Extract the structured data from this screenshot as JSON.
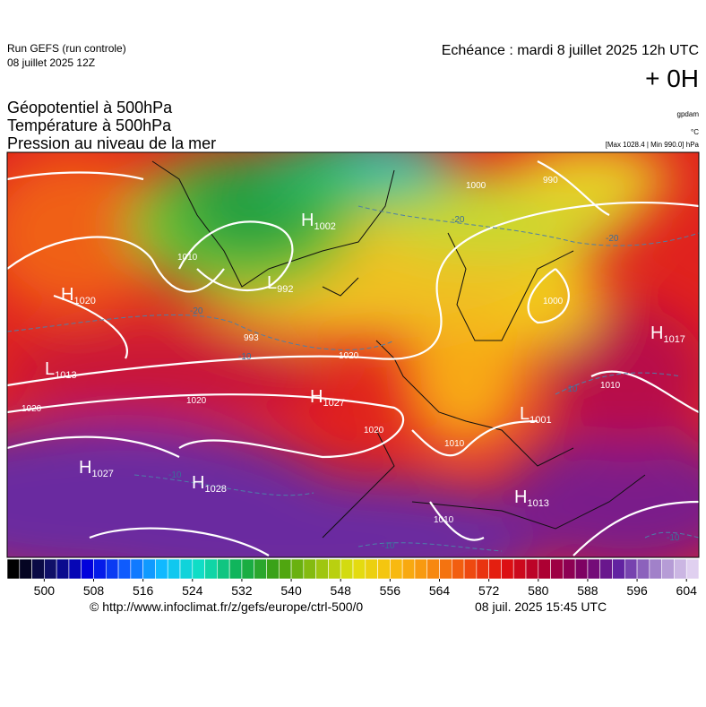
{
  "header": {
    "run": "Run GEFS (run controle)",
    "run_date": "08 juillet 2025 12Z",
    "valid": "Echéance : mardi 8 juillet 2025 12h UTC",
    "lead": "+ 0H",
    "fields": [
      "Géopotentiel à 500hPa",
      "Température à 500hPa",
      "Pression au niveau de la mer"
    ],
    "unit_geopotential": "gpdam",
    "unit_temperature": "°C",
    "pressure_range": "[Max 1028.4 | Min 990.0] hPa"
  },
  "map": {
    "centers": [
      {
        "letter": "H",
        "value": 1020
      },
      {
        "letter": "L",
        "value": 1013
      },
      {
        "letter": "H",
        "value": 1027
      },
      {
        "letter": "H",
        "value": 1027
      },
      {
        "letter": "H",
        "value": 1028
      },
      {
        "letter": "H",
        "value": 1002
      },
      {
        "letter": "L",
        "value": 992
      },
      {
        "letter": "H",
        "value": 1017
      },
      {
        "letter": "L",
        "value": 1001
      },
      {
        "letter": "H",
        "value": 1013
      }
    ],
    "isobar_labels": [
      1000,
      990,
      1020,
      1020,
      1020,
      1020,
      1010,
      1010,
      1010,
      1010,
      1000,
      993
    ],
    "temperature_labels": [
      -20,
      -10,
      -10,
      -10,
      -20,
      -10,
      -10,
      -20
    ]
  },
  "colorbar": {
    "lim": [
      494,
      606
    ],
    "ticks": [
      500,
      508,
      516,
      524,
      532,
      540,
      548,
      556,
      564,
      572,
      580,
      588,
      596,
      604
    ]
  },
  "footer": {
    "source": "© http://www.infoclimat.fr/z/gefs/europe/ctrl-500/0",
    "generated": "08 juil. 2025 15:45 UTC"
  }
}
